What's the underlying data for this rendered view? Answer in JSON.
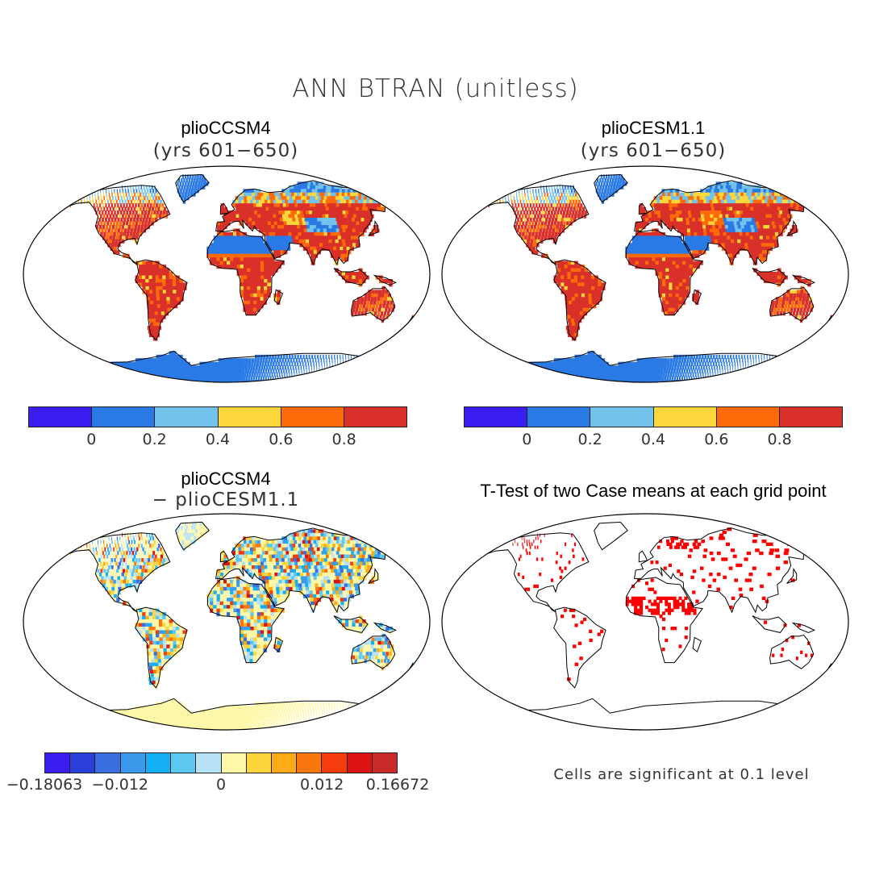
{
  "title": "ANN BTRAN (unitless)",
  "panels": {
    "top_left": {
      "title": "plioCCSM4",
      "subtitle": "(yrs 601−650)"
    },
    "top_right": {
      "title": "plioCESM1.1",
      "subtitle": "(yrs 601−650)"
    },
    "bottom_left": {
      "title": "plioCCSM4",
      "subtitle": "− plioCESM1.1"
    },
    "bottom_right": {
      "title": "T-Test of two Case means at each grid point",
      "note": "Cells are significant at 0.1 level"
    }
  },
  "colorbar_abs": {
    "colors": [
      "#3a1ef0",
      "#2a7ae6",
      "#72c2ec",
      "#fcd73c",
      "#fc6a0a",
      "#d9302a"
    ],
    "ticks": [
      "0",
      "0.2",
      "0.4",
      "0.6",
      "0.8"
    ]
  },
  "colorbar_diff": {
    "colors": [
      "#3a1ef0",
      "#2a3fd8",
      "#3a6ee0",
      "#3b9aec",
      "#14b0f4",
      "#5cc8f0",
      "#b8e2f6",
      "#fdf7a8",
      "#fcd53a",
      "#fcab14",
      "#f8780e",
      "#f43c0c",
      "#dc1414",
      "#c82a2a"
    ],
    "ticks": [
      "−0.18063",
      "−0.012",
      "0",
      "0.012",
      "0.16672"
    ]
  },
  "significance_color": "#ff0000",
  "ocean_color": "#ffffff"
}
